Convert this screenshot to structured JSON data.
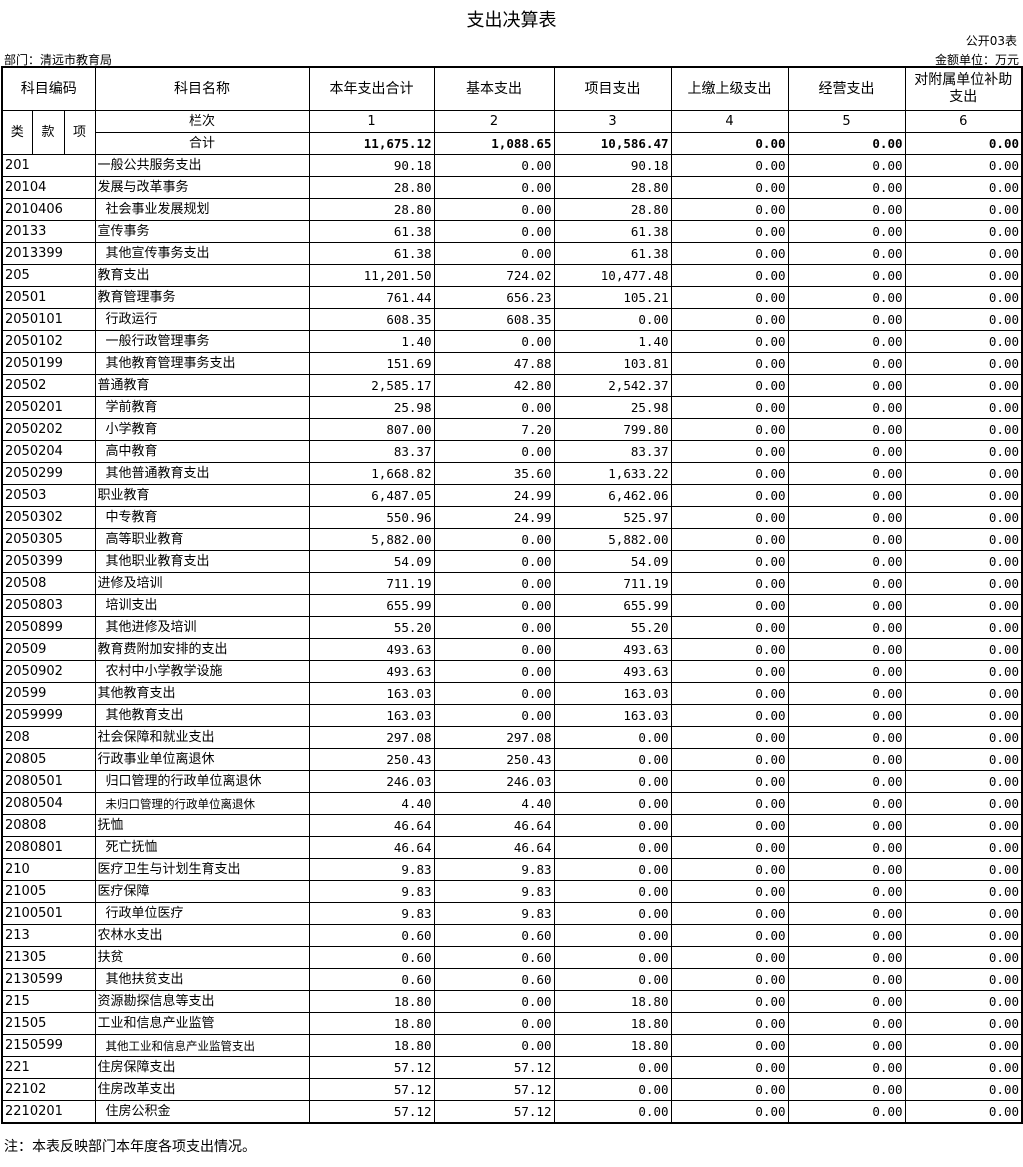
{
  "title": "支出决算表",
  "form_no": "公开03表",
  "department": "部门：清远市教育局",
  "unit": "金额单位：万元",
  "headers": {
    "code": "科目编码",
    "name": "科目名称",
    "cols": [
      "本年支出合计",
      "基本支出",
      "项目支出",
      "上缴上级支出",
      "经营支出",
      "对附属单位补助支出"
    ],
    "lei": "类",
    "kuan": "款",
    "xiang": "项",
    "lanci": "栏次",
    "col_nums": [
      "1",
      "2",
      "3",
      "4",
      "5",
      "6"
    ],
    "total_label": "合计"
  },
  "totals": [
    "11,675.12",
    "1,088.65",
    "10,586.47",
    "0.00",
    "0.00",
    "0.00"
  ],
  "rows": [
    {
      "code": "201",
      "name": "一般公共服务支出",
      "level": 1,
      "values": [
        "90.18",
        "0.00",
        "90.18",
        "0.00",
        "0.00",
        "0.00"
      ]
    },
    {
      "code": "20104",
      "name": "发展与改革事务",
      "level": 2,
      "values": [
        "28.80",
        "0.00",
        "28.80",
        "0.00",
        "0.00",
        "0.00"
      ]
    },
    {
      "code": "2010406",
      "name": "社会事业发展规划",
      "level": 3,
      "values": [
        "28.80",
        "0.00",
        "28.80",
        "0.00",
        "0.00",
        "0.00"
      ]
    },
    {
      "code": "20133",
      "name": "宣传事务",
      "level": 2,
      "values": [
        "61.38",
        "0.00",
        "61.38",
        "0.00",
        "0.00",
        "0.00"
      ]
    },
    {
      "code": "2013399",
      "name": "其他宣传事务支出",
      "level": 3,
      "values": [
        "61.38",
        "0.00",
        "61.38",
        "0.00",
        "0.00",
        "0.00"
      ]
    },
    {
      "code": "205",
      "name": "教育支出",
      "level": 1,
      "values": [
        "11,201.50",
        "724.02",
        "10,477.48",
        "0.00",
        "0.00",
        "0.00"
      ]
    },
    {
      "code": "20501",
      "name": "教育管理事务",
      "level": 2,
      "values": [
        "761.44",
        "656.23",
        "105.21",
        "0.00",
        "0.00",
        "0.00"
      ]
    },
    {
      "code": "2050101",
      "name": "行政运行",
      "level": 3,
      "values": [
        "608.35",
        "608.35",
        "0.00",
        "0.00",
        "0.00",
        "0.00"
      ]
    },
    {
      "code": "2050102",
      "name": "一般行政管理事务",
      "level": 3,
      "values": [
        "1.40",
        "0.00",
        "1.40",
        "0.00",
        "0.00",
        "0.00"
      ]
    },
    {
      "code": "2050199",
      "name": "其他教育管理事务支出",
      "level": 3,
      "values": [
        "151.69",
        "47.88",
        "103.81",
        "0.00",
        "0.00",
        "0.00"
      ]
    },
    {
      "code": "20502",
      "name": "普通教育",
      "level": 2,
      "values": [
        "2,585.17",
        "42.80",
        "2,542.37",
        "0.00",
        "0.00",
        "0.00"
      ]
    },
    {
      "code": "2050201",
      "name": "学前教育",
      "level": 3,
      "values": [
        "25.98",
        "0.00",
        "25.98",
        "0.00",
        "0.00",
        "0.00"
      ]
    },
    {
      "code": "2050202",
      "name": "小学教育",
      "level": 3,
      "values": [
        "807.00",
        "7.20",
        "799.80",
        "0.00",
        "0.00",
        "0.00"
      ]
    },
    {
      "code": "2050204",
      "name": "高中教育",
      "level": 3,
      "values": [
        "83.37",
        "0.00",
        "83.37",
        "0.00",
        "0.00",
        "0.00"
      ]
    },
    {
      "code": "2050299",
      "name": "其他普通教育支出",
      "level": 3,
      "values": [
        "1,668.82",
        "35.60",
        "1,633.22",
        "0.00",
        "0.00",
        "0.00"
      ]
    },
    {
      "code": "20503",
      "name": "职业教育",
      "level": 2,
      "values": [
        "6,487.05",
        "24.99",
        "6,462.06",
        "0.00",
        "0.00",
        "0.00"
      ]
    },
    {
      "code": "2050302",
      "name": "中专教育",
      "level": 3,
      "values": [
        "550.96",
        "24.99",
        "525.97",
        "0.00",
        "0.00",
        "0.00"
      ]
    },
    {
      "code": "2050305",
      "name": "高等职业教育",
      "level": 3,
      "values": [
        "5,882.00",
        "0.00",
        "5,882.00",
        "0.00",
        "0.00",
        "0.00"
      ]
    },
    {
      "code": "2050399",
      "name": "其他职业教育支出",
      "level": 3,
      "values": [
        "54.09",
        "0.00",
        "54.09",
        "0.00",
        "0.00",
        "0.00"
      ]
    },
    {
      "code": "20508",
      "name": "进修及培训",
      "level": 2,
      "values": [
        "711.19",
        "0.00",
        "711.19",
        "0.00",
        "0.00",
        "0.00"
      ]
    },
    {
      "code": "2050803",
      "name": "培训支出",
      "level": 3,
      "values": [
        "655.99",
        "0.00",
        "655.99",
        "0.00",
        "0.00",
        "0.00"
      ]
    },
    {
      "code": "2050899",
      "name": "其他进修及培训",
      "level": 3,
      "values": [
        "55.20",
        "0.00",
        "55.20",
        "0.00",
        "0.00",
        "0.00"
      ]
    },
    {
      "code": "20509",
      "name": "教育费附加安排的支出",
      "level": 2,
      "values": [
        "493.63",
        "0.00",
        "493.63",
        "0.00",
        "0.00",
        "0.00"
      ]
    },
    {
      "code": "2050902",
      "name": "农村中小学教学设施",
      "level": 3,
      "values": [
        "493.63",
        "0.00",
        "493.63",
        "0.00",
        "0.00",
        "0.00"
      ]
    },
    {
      "code": "20599",
      "name": "其他教育支出",
      "level": 2,
      "values": [
        "163.03",
        "0.00",
        "163.03",
        "0.00",
        "0.00",
        "0.00"
      ]
    },
    {
      "code": "2059999",
      "name": "其他教育支出",
      "level": 3,
      "values": [
        "163.03",
        "0.00",
        "163.03",
        "0.00",
        "0.00",
        "0.00"
      ]
    },
    {
      "code": "208",
      "name": "社会保障和就业支出",
      "level": 1,
      "values": [
        "297.08",
        "297.08",
        "0.00",
        "0.00",
        "0.00",
        "0.00"
      ]
    },
    {
      "code": "20805",
      "name": "行政事业单位离退休",
      "level": 2,
      "values": [
        "250.43",
        "250.43",
        "0.00",
        "0.00",
        "0.00",
        "0.00"
      ]
    },
    {
      "code": "2080501",
      "name": "归口管理的行政单位离退休",
      "level": 3,
      "values": [
        "246.03",
        "246.03",
        "0.00",
        "0.00",
        "0.00",
        "0.00"
      ]
    },
    {
      "code": "2080504",
      "name": "未归口管理的行政单位离退休",
      "level": 4,
      "values": [
        "4.40",
        "4.40",
        "0.00",
        "0.00",
        "0.00",
        "0.00"
      ]
    },
    {
      "code": "20808",
      "name": "抚恤",
      "level": 2,
      "values": [
        "46.64",
        "46.64",
        "0.00",
        "0.00",
        "0.00",
        "0.00"
      ]
    },
    {
      "code": "2080801",
      "name": "死亡抚恤",
      "level": 3,
      "values": [
        "46.64",
        "46.64",
        "0.00",
        "0.00",
        "0.00",
        "0.00"
      ]
    },
    {
      "code": "210",
      "name": "医疗卫生与计划生育支出",
      "level": 1,
      "values": [
        "9.83",
        "9.83",
        "0.00",
        "0.00",
        "0.00",
        "0.00"
      ]
    },
    {
      "code": "21005",
      "name": "医疗保障",
      "level": 2,
      "values": [
        "9.83",
        "9.83",
        "0.00",
        "0.00",
        "0.00",
        "0.00"
      ]
    },
    {
      "code": "2100501",
      "name": "行政单位医疗",
      "level": 3,
      "values": [
        "9.83",
        "9.83",
        "0.00",
        "0.00",
        "0.00",
        "0.00"
      ]
    },
    {
      "code": "213",
      "name": "农林水支出",
      "level": 1,
      "values": [
        "0.60",
        "0.60",
        "0.00",
        "0.00",
        "0.00",
        "0.00"
      ]
    },
    {
      "code": "21305",
      "name": "扶贫",
      "level": 2,
      "values": [
        "0.60",
        "0.60",
        "0.00",
        "0.00",
        "0.00",
        "0.00"
      ]
    },
    {
      "code": "2130599",
      "name": "其他扶贫支出",
      "level": 3,
      "values": [
        "0.60",
        "0.60",
        "0.00",
        "0.00",
        "0.00",
        "0.00"
      ]
    },
    {
      "code": "215",
      "name": "资源勘探信息等支出",
      "level": 1,
      "values": [
        "18.80",
        "0.00",
        "18.80",
        "0.00",
        "0.00",
        "0.00"
      ]
    },
    {
      "code": "21505",
      "name": "工业和信息产业监管",
      "level": 2,
      "values": [
        "18.80",
        "0.00",
        "18.80",
        "0.00",
        "0.00",
        "0.00"
      ]
    },
    {
      "code": "2150599",
      "name": "其他工业和信息产业监管支出",
      "level": 4,
      "values": [
        "18.80",
        "0.00",
        "18.80",
        "0.00",
        "0.00",
        "0.00"
      ]
    },
    {
      "code": "221",
      "name": "住房保障支出",
      "level": 1,
      "values": [
        "57.12",
        "57.12",
        "0.00",
        "0.00",
        "0.00",
        "0.00"
      ]
    },
    {
      "code": "22102",
      "name": "住房改革支出",
      "level": 2,
      "values": [
        "57.12",
        "57.12",
        "0.00",
        "0.00",
        "0.00",
        "0.00"
      ]
    },
    {
      "code": "2210201",
      "name": "住房公积金",
      "level": 3,
      "values": [
        "57.12",
        "57.12",
        "0.00",
        "0.00",
        "0.00",
        "0.00"
      ]
    }
  ],
  "note": "注：本表反映部门本年度各项支出情况。"
}
